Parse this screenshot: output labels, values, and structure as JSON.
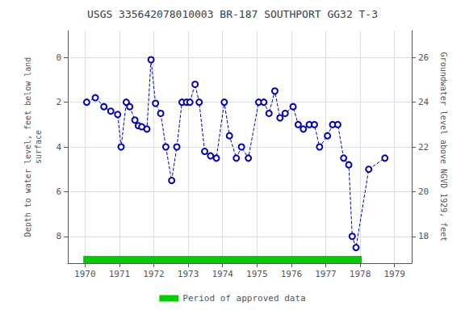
{
  "chart_data": {
    "type": "line",
    "title": "USGS 335642078010003 BR-187 SOUTHPORT GG32 T-3",
    "ylabel": "Depth to water level, feet below land\nsurface",
    "y2label": "Groundwater level above NGVD 1929, feet",
    "x": [
      1970.05,
      1970.3,
      1970.55,
      1970.75,
      1970.95,
      1971.05,
      1971.2,
      1971.3,
      1971.45,
      1971.55,
      1971.65,
      1971.8,
      1971.92,
      1972.05,
      1972.2,
      1972.35,
      1972.52,
      1972.67,
      1972.82,
      1972.95,
      1973.05,
      1973.2,
      1973.32,
      1973.48,
      1973.65,
      1973.82,
      1974.05,
      1974.2,
      1974.4,
      1974.55,
      1974.75,
      1975.05,
      1975.2,
      1975.35,
      1975.52,
      1975.67,
      1975.82,
      1976.05,
      1976.2,
      1976.35,
      1976.52,
      1976.67,
      1976.82,
      1977.05,
      1977.2,
      1977.35,
      1977.52,
      1977.67,
      1977.77,
      1977.88,
      1978.25,
      1978.72
    ],
    "xlim": [
      1969.5,
      1979.5
    ],
    "xticks": [
      1970,
      1971,
      1972,
      1973,
      1974,
      1975,
      1976,
      1977,
      1978,
      1979
    ],
    "ylim": [
      9.2,
      -1.2
    ],
    "yticks": [
      0,
      2,
      4,
      6,
      8
    ],
    "y2lim": [
      16.8,
      27.2
    ],
    "y2ticks": [
      18,
      20,
      22,
      24,
      26
    ],
    "grid": true,
    "legend": "bottom",
    "series": [
      {
        "type": "line",
        "color": "#0000bb",
        "line_style": "dashed",
        "marker": "circle",
        "values": [
          2.0,
          1.8,
          2.2,
          2.4,
          2.55,
          4.0,
          2.0,
          2.2,
          2.8,
          3.05,
          3.1,
          3.2,
          0.1,
          2.05,
          2.5,
          4.0,
          5.5,
          4.0,
          2.0,
          2.0,
          2.0,
          1.2,
          2.0,
          4.2,
          4.4,
          4.5,
          2.0,
          3.5,
          4.5,
          4.0,
          4.5,
          2.0,
          2.0,
          2.5,
          1.5,
          2.7,
          2.5,
          2.2,
          3.0,
          3.2,
          3.0,
          3.0,
          4.0,
          3.5,
          3.0,
          3.0,
          4.5,
          4.8,
          8.0,
          8.5,
          5.0,
          4.5
        ]
      },
      {
        "type": "span",
        "name": "Period of approved data",
        "color": "#00cc00",
        "x": [
          1969.95,
          1978.05
        ]
      }
    ]
  }
}
